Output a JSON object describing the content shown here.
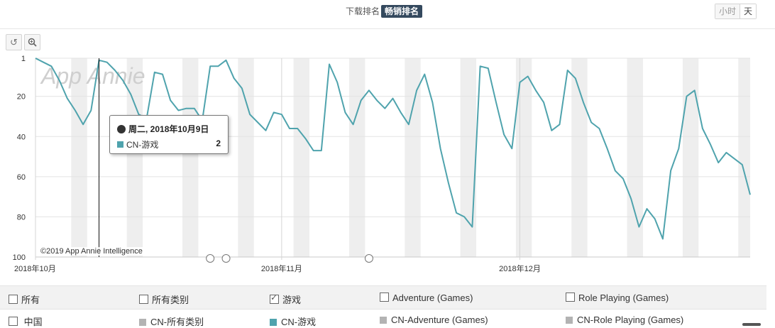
{
  "header": {
    "tabs": [
      {
        "label": "下载排名",
        "active": false
      },
      {
        "label": "畅销排名",
        "active": true
      }
    ],
    "granularity": [
      {
        "label": "小时",
        "active": false
      },
      {
        "label": "天",
        "active": true
      }
    ]
  },
  "toolbar": {
    "reset_icon": "undo-icon",
    "zoom_icon": "zoom-icon"
  },
  "chart": {
    "watermark": "App Annie",
    "copyright": "©2019 App Annie Intelligence",
    "tooltip": {
      "date": "周二, 2018年10月9日",
      "series": "CN-游戏",
      "value": "2"
    }
  },
  "chart_data": {
    "type": "line",
    "y_axis": {
      "reversed": true,
      "range": [
        1,
        100
      ],
      "ticks": [
        1,
        20,
        40,
        60,
        80,
        100
      ]
    },
    "x_axis": {
      "start": "2018-10-01",
      "labels": [
        {
          "text": "2018年10月",
          "day": 0
        },
        {
          "text": "2018年11月",
          "day": 31
        },
        {
          "text": "2018年12月",
          "day": 61
        }
      ]
    },
    "series": [
      {
        "name": "CN-游戏",
        "color": "#4fa3ad",
        "values": [
          1,
          3,
          5,
          12,
          21,
          27,
          34,
          27,
          2,
          3,
          7,
          12,
          19,
          29,
          31,
          8,
          9,
          22,
          27,
          26,
          26,
          32,
          5,
          5,
          2,
          11,
          16,
          29,
          33,
          37,
          28,
          29,
          36,
          36,
          41,
          47,
          47,
          4,
          13,
          28,
          34,
          22,
          17,
          22,
          26,
          21,
          28,
          34,
          17,
          9,
          23,
          46,
          63,
          78,
          80,
          85,
          5,
          6,
          23,
          39,
          46,
          13,
          10,
          17,
          23,
          37,
          34,
          7,
          11,
          23,
          33,
          36,
          46,
          57,
          61,
          71,
          85,
          76,
          81,
          91,
          57,
          46,
          20,
          17,
          36,
          44,
          53,
          48,
          51,
          54,
          69
        ]
      }
    ],
    "weekend_bands": true,
    "markers": [
      {
        "day": 22
      },
      {
        "day": 24
      },
      {
        "day": 42
      }
    ]
  },
  "filters": {
    "row1": [
      {
        "label": "所有",
        "checked": false
      },
      {
        "label": "所有类别",
        "checked": false
      },
      {
        "label": "游戏",
        "checked": true
      },
      {
        "label": "Adventure (Games)",
        "checked": false
      },
      {
        "label": "Role Playing (Games)",
        "checked": false
      }
    ],
    "row2": [
      {
        "label": "中国",
        "type": "checkbox",
        "checked": false
      },
      {
        "label": "CN-所有类别",
        "type": "swatch",
        "color": "#b3b3b3"
      },
      {
        "label": "CN-游戏",
        "type": "swatch",
        "color": "#4fa3ad"
      },
      {
        "label": "CN-Adventure (Games)",
        "type": "swatch",
        "color": "#b3b3b3"
      },
      {
        "label": "CN-Role Playing (Games)",
        "type": "swatch",
        "color": "#b3b3b3"
      }
    ]
  }
}
